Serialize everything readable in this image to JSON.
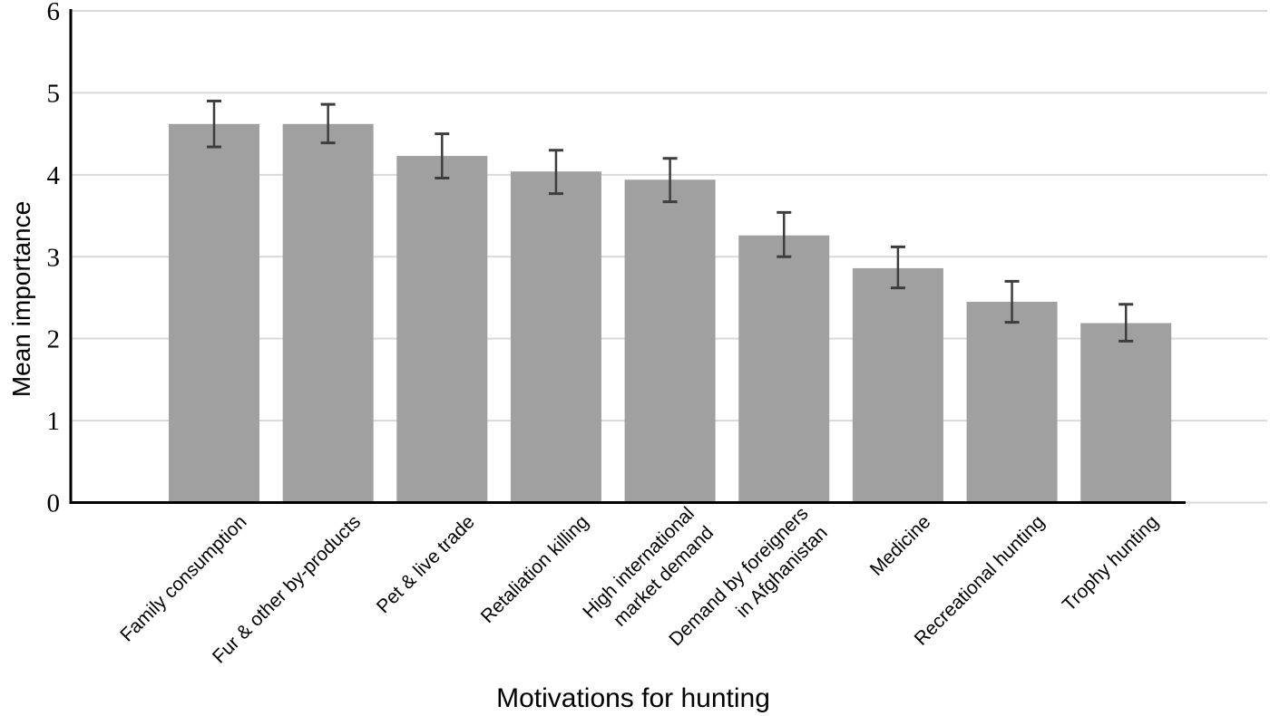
{
  "chart_data": {
    "type": "bar",
    "title": "",
    "xlabel": "Motivations for hunting",
    "ylabel": "Mean importance",
    "ylim": [
      0,
      6
    ],
    "yticks": [
      0,
      1,
      2,
      3,
      4,
      5,
      6
    ],
    "grid": "horizontal",
    "legend": "none",
    "background": "#ffffff",
    "bar_color": "#a0a0a0",
    "error_bar_color": "#3d3d3d",
    "gridline_color": "#d9d9d9",
    "axis_color": "#000000",
    "text_color": "#000000",
    "categories": [
      "Family consumption",
      "Fur & other by-products",
      "Pet & live trade",
      "Retaliation killing",
      "High international market demand",
      "Demand by foreigners in Afghanistan",
      "Medicine",
      "Recreational hunting",
      "Trophy hunting"
    ],
    "category_label_lines": [
      [
        "Family consumption"
      ],
      [
        "Fur & other by-products"
      ],
      [
        "Pet & live trade"
      ],
      [
        "Retaliation killing"
      ],
      [
        "High international",
        "market demand"
      ],
      [
        "Demand by foreigners",
        "in Afghanistan"
      ],
      [
        "Medicine"
      ],
      [
        "Recreational hunting"
      ],
      [
        "Trophy hunting"
      ]
    ],
    "series": [
      {
        "name": "Mean importance",
        "values": [
          4.62,
          4.62,
          4.23,
          4.04,
          3.94,
          3.26,
          2.86,
          2.45,
          2.19
        ],
        "error_low": [
          4.34,
          4.39,
          3.96,
          3.77,
          3.67,
          3.0,
          2.62,
          2.2,
          1.97
        ],
        "error_high": [
          4.9,
          4.86,
          4.5,
          4.3,
          4.2,
          3.54,
          3.12,
          2.7,
          2.42
        ]
      }
    ]
  }
}
